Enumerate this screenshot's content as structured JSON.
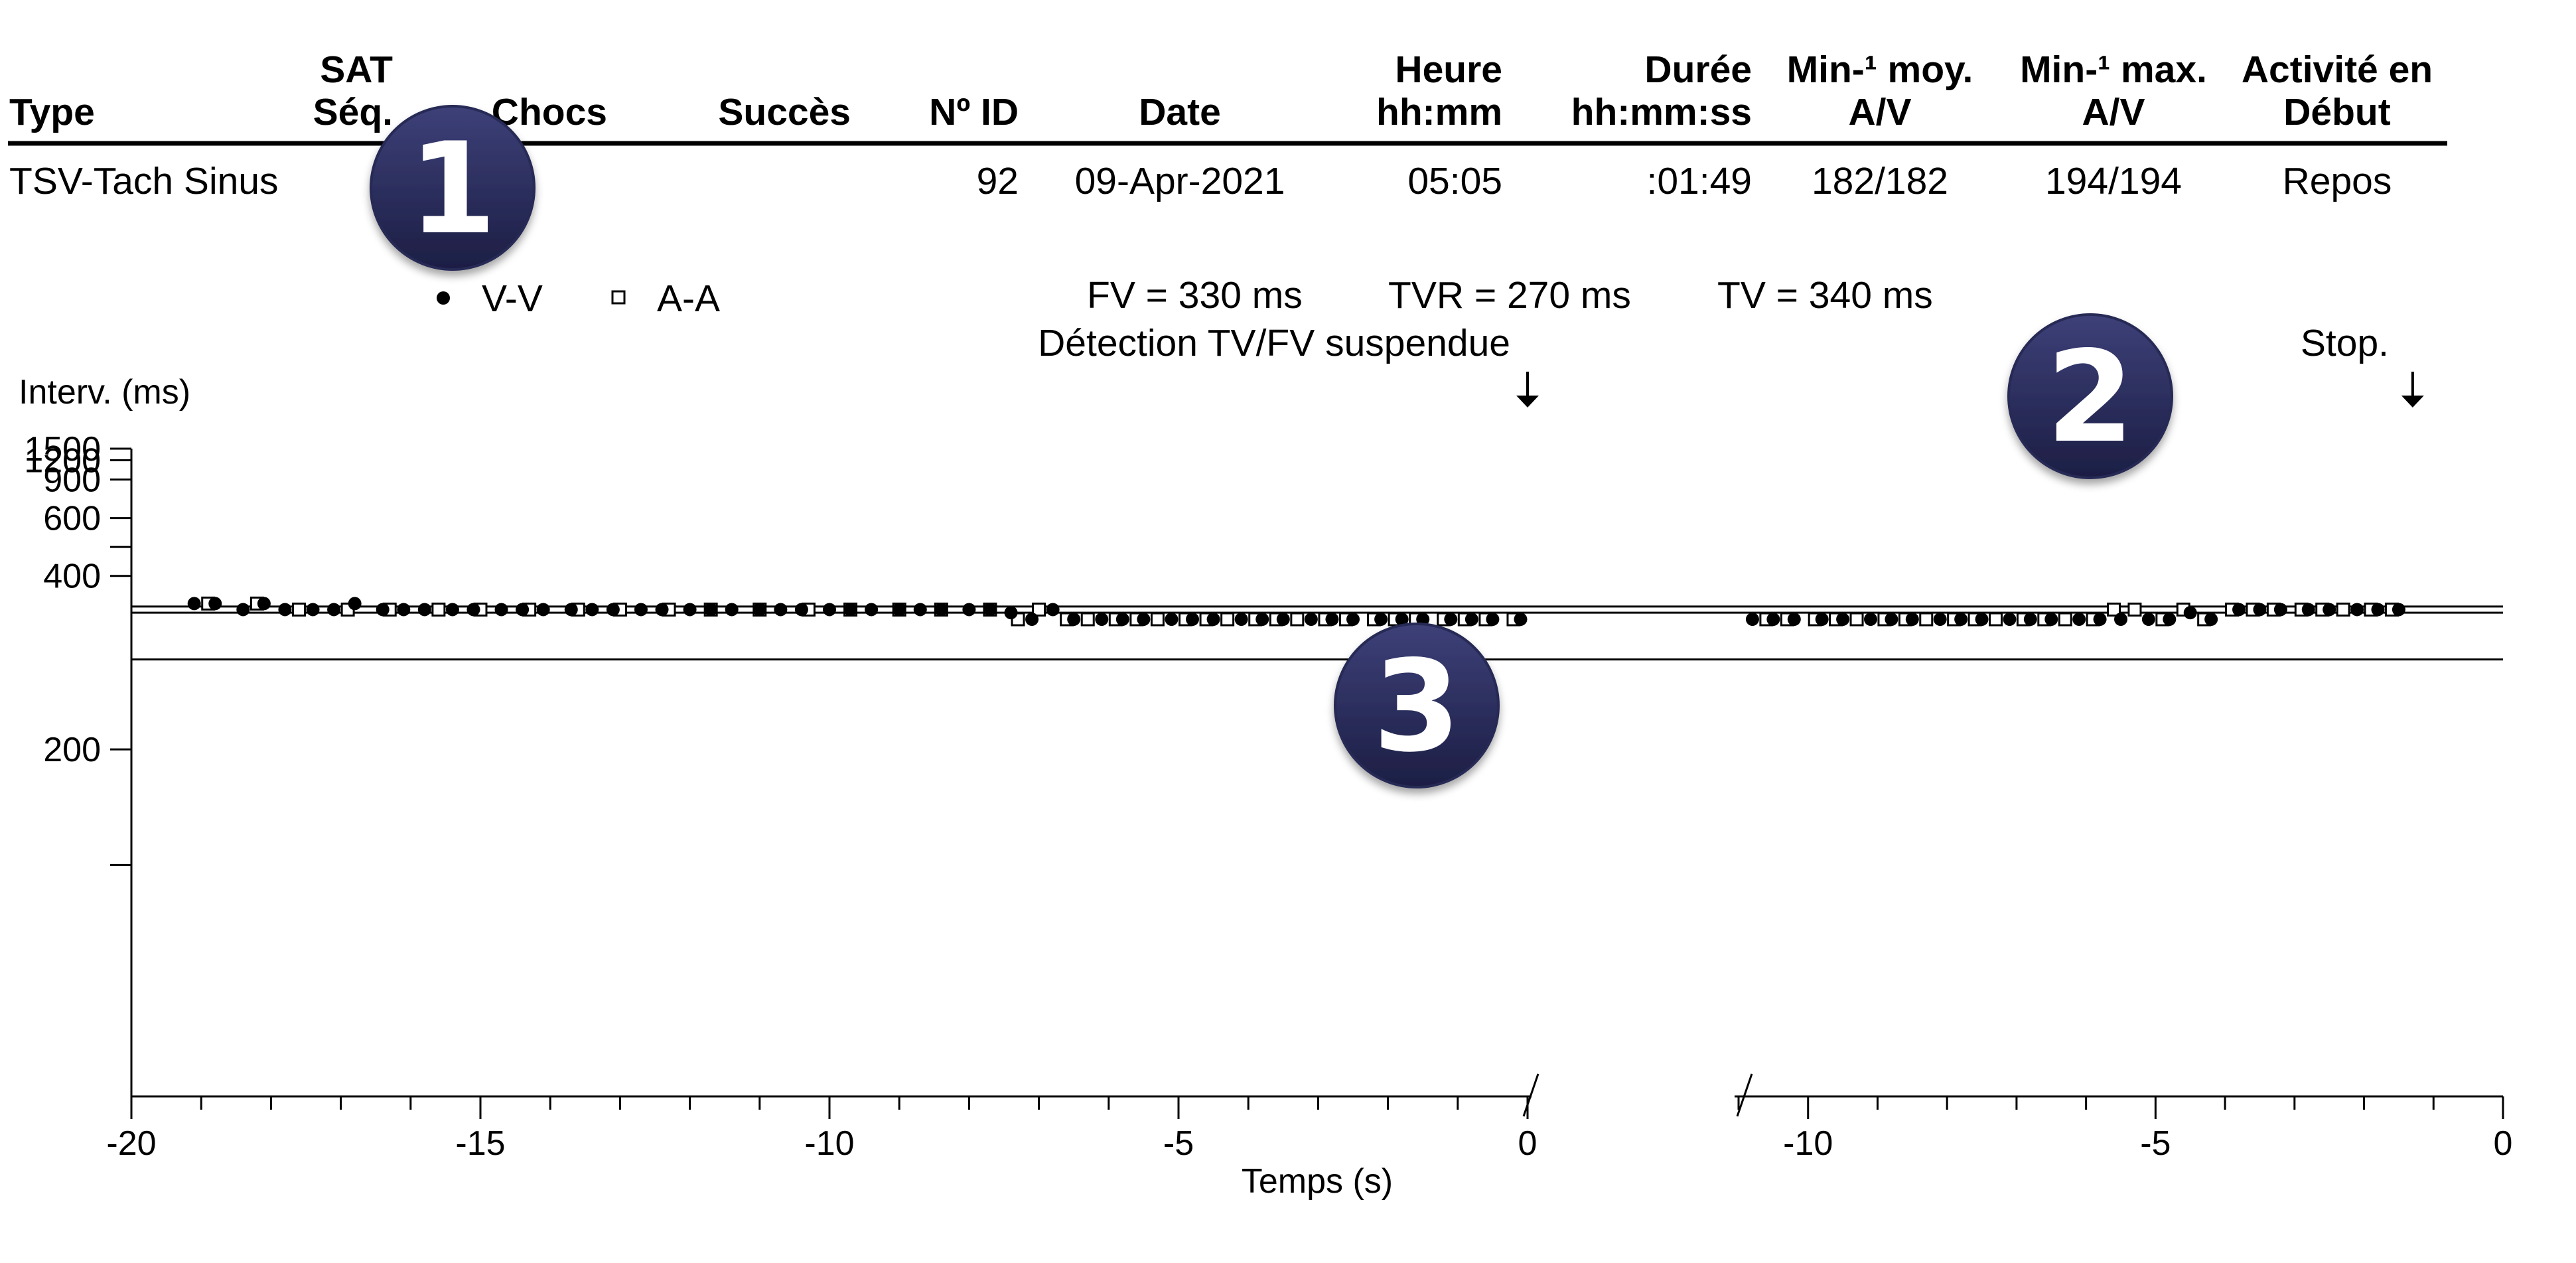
{
  "table": {
    "headers": [
      {
        "lines": [
          "Type"
        ],
        "align": "start"
      },
      {
        "lines": [
          "SAT",
          "Séq."
        ],
        "align": "end"
      },
      {
        "lines": [
          "Chocs"
        ],
        "align": "end"
      },
      {
        "lines": [
          "Succès"
        ],
        "align": "end"
      },
      {
        "lines": [
          "Nº ID"
        ],
        "align": "end"
      },
      {
        "lines": [
          "Date"
        ],
        "align": "middle"
      },
      {
        "lines": [
          "Heure",
          "hh:mm"
        ],
        "align": "end"
      },
      {
        "lines": [
          "Durée",
          "hh:mm:ss"
        ],
        "align": "end"
      },
      {
        "lines": [
          "Min-¹ moy.",
          "A/V"
        ],
        "align": "middle"
      },
      {
        "lines": [
          "Min-¹ max.",
          "A/V"
        ],
        "align": "middle"
      },
      {
        "lines": [
          "Activité en",
          "Début"
        ],
        "align": "middle"
      }
    ],
    "row": [
      "TSV-Tach Sinus",
      "",
      "",
      "",
      "92",
      "09-Apr-2021",
      "05:05",
      ":01:49",
      "182/182",
      "194/194",
      "Repos"
    ]
  },
  "badges": [
    "1",
    "2",
    "3"
  ],
  "badge_color": "#262955",
  "chart_data": {
    "type": "scatter",
    "legend": [
      {
        "name": "V-V",
        "marker": "filled-circle"
      },
      {
        "name": "A-A",
        "marker": "open-square"
      }
    ],
    "legend_position": "top",
    "zones": [
      "FV = 330 ms",
      "TVR = 270 ms",
      "TV = 340 ms"
    ],
    "events": [
      {
        "label": "Détection TV/FV suspendue",
        "panel": 0,
        "x": 0
      },
      {
        "label": "Stop.",
        "panel": 1,
        "x": -1.3
      }
    ],
    "ylabel": "Interv. (ms)",
    "xlabel": "Temps (s)",
    "y_scale": "reciprocal",
    "ylim": [
      100,
      1500
    ],
    "yticks": [
      1500,
      1200,
      900,
      600,
      400,
      200
    ],
    "yticks_minor": [
      480,
      150
    ],
    "threshold_lines": [
      340,
      330,
      270
    ],
    "panels": [
      {
        "xlim": [
          -20,
          0
        ],
        "xtick_labels": [
          -20,
          -15,
          -10,
          -5,
          0
        ],
        "vv": {
          "x": [
            -19.1,
            -18.8,
            -18.4,
            -18.1,
            -17.8,
            -17.4,
            -17.1,
            -16.8,
            -16.4,
            -16.1,
            -15.8,
            -15.4,
            -15.1,
            -14.7,
            -14.4,
            -14.1,
            -13.7,
            -13.4,
            -13.1,
            -12.7,
            -12.4,
            -12.0,
            -11.7,
            -11.4,
            -11.0,
            -10.7,
            -10.4,
            -10.0,
            -9.7,
            -9.4,
            -9.0,
            -8.7,
            -8.4,
            -8.0,
            -7.7,
            -7.4,
            -7.1,
            -6.8,
            -6.5,
            -6.1,
            -5.8,
            -5.5,
            -5.1,
            -4.8,
            -4.5,
            -4.1,
            -3.8,
            -3.5,
            -3.1,
            -2.8,
            -2.5,
            -2.1,
            -1.8,
            -1.5,
            -1.1,
            -0.8,
            -0.5,
            -0.1
          ],
          "y": [
            345,
            345,
            335,
            345,
            335,
            335,
            335,
            345,
            335,
            335,
            335,
            335,
            335,
            335,
            335,
            335,
            335,
            335,
            335,
            335,
            335,
            335,
            335,
            335,
            335,
            335,
            335,
            335,
            335,
            335,
            335,
            335,
            335,
            335,
            335,
            330,
            320,
            335,
            320,
            320,
            320,
            320,
            320,
            320,
            320,
            320,
            320,
            320,
            320,
            320,
            320,
            320,
            320,
            320,
            320,
            320,
            320,
            320
          ]
        },
        "aa": {
          "x": [
            -18.9,
            -18.2,
            -17.6,
            -16.9,
            -16.3,
            -15.6,
            -15.0,
            -14.3,
            -13.6,
            -13.0,
            -12.3,
            -11.7,
            -11.0,
            -10.3,
            -9.7,
            -9.0,
            -8.4,
            -7.7,
            -7.3,
            -7.0,
            -6.6,
            -6.3,
            -5.9,
            -5.6,
            -5.3,
            -4.9,
            -4.6,
            -4.3,
            -3.9,
            -3.6,
            -3.3,
            -2.9,
            -2.6,
            -2.2,
            -1.9,
            -1.6,
            -1.2,
            -0.9,
            -0.6,
            -0.2
          ],
          "y": [
            345,
            345,
            335,
            335,
            335,
            335,
            335,
            335,
            335,
            335,
            335,
            335,
            335,
            335,
            335,
            335,
            335,
            335,
            320,
            335,
            320,
            320,
            320,
            320,
            320,
            320,
            320,
            320,
            320,
            320,
            320,
            320,
            320,
            320,
            320,
            320,
            320,
            320,
            320,
            320
          ]
        }
      },
      {
        "xlim": [
          -11,
          0
        ],
        "xtick_labels": [
          -10,
          -5,
          0
        ],
        "vv": {
          "x": [
            -10.8,
            -10.5,
            -10.2,
            -9.8,
            -9.5,
            -9.1,
            -8.8,
            -8.5,
            -8.1,
            -7.8,
            -7.5,
            -7.1,
            -6.8,
            -6.5,
            -6.1,
            -5.8,
            -5.5,
            -5.1,
            -4.8,
            -4.5,
            -4.2,
            -3.8,
            -3.5,
            -3.2,
            -2.8,
            -2.5,
            -2.1,
            -1.8,
            -1.5
          ],
          "y": [
            320,
            320,
            320,
            320,
            320,
            320,
            320,
            320,
            320,
            320,
            320,
            320,
            320,
            320,
            320,
            320,
            320,
            320,
            320,
            330,
            320,
            335,
            335,
            335,
            335,
            335,
            335,
            335,
            335
          ]
        },
        "aa": {
          "x": [
            -10.6,
            -10.3,
            -9.9,
            -9.6,
            -9.3,
            -8.9,
            -8.6,
            -8.3,
            -7.9,
            -7.6,
            -7.3,
            -6.9,
            -6.6,
            -6.3,
            -5.9,
            -5.6,
            -5.3,
            -4.9,
            -4.6,
            -4.3,
            -3.9,
            -3.6,
            -3.3,
            -2.9,
            -2.6,
            -2.3,
            -1.9,
            -1.6
          ],
          "y": [
            320,
            320,
            320,
            320,
            320,
            320,
            320,
            320,
            320,
            320,
            320,
            320,
            320,
            320,
            320,
            335,
            335,
            320,
            335,
            320,
            335,
            335,
            335,
            335,
            335,
            335,
            335,
            335
          ]
        }
      }
    ]
  }
}
